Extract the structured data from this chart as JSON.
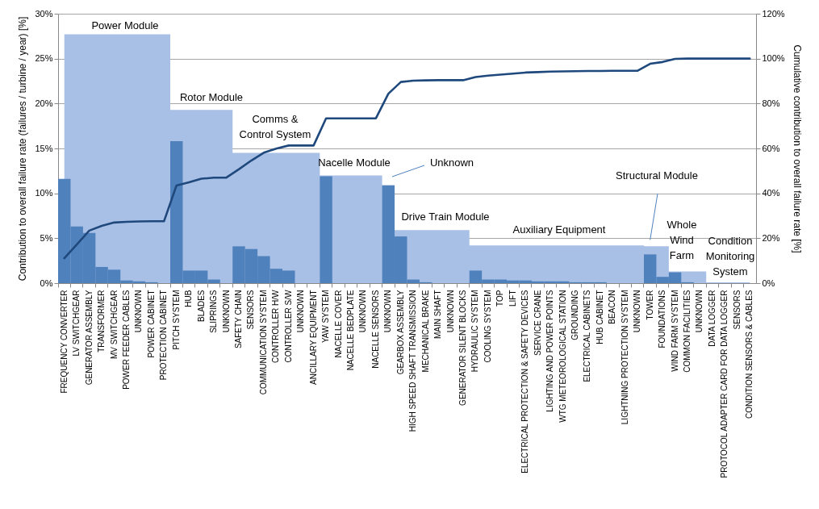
{
  "chart_data": {
    "type": "bar",
    "ylabel": "Contribution to overall failure rate (failures / turbine / year) [%]",
    "y2label": "Cumulative contribution to overall failure rate [%]",
    "categories": [
      "FREQUENCY CONVERTER",
      "LV SWITCHGEAR",
      "GENERATOR ASSEMBLY",
      "TRANSFORMER",
      "MV SWITCHGEAR",
      "POWER FEEDER CABLES",
      "UNKNOWN",
      "POWER CABINET",
      "PROTECTION CABINET",
      "PITCH SYSTEM",
      "HUB",
      "BLADES",
      "SLIPRINGS",
      "UNKNOWN",
      "SAFETY CHAIN",
      "SENSORS",
      "COMMUNICATION SYSTEM",
      "CONTROLLER H/W",
      "CONTROLLER S/W",
      "UNKNOWN",
      "ANCILLARY EQUIPMENT",
      "YAW SYSTEM",
      "NACELLE COVER",
      "NACELLE BEDPLATE",
      "UNKNOWN",
      "NACELLE SENSORS",
      "UNKNOWN",
      "GEARBOX ASSEMBLY",
      "HIGH SPEED SHAFT TRANSMISSION",
      "MECHANICAL BRAKE",
      "MAIN SHAFT",
      "UNKNOWN",
      "GENERATOR SILENT BLOCKS",
      "HYDRAULIC SYSTEM",
      "COOLING SYSTEM",
      "TOP",
      "LIFT",
      "ELECTRICAL PROTECTION & SAFETY DEVICES",
      "SERVICE CRANE",
      "LIGHTING AND POWER POINTS",
      "WTG METEOROLOGICAL STATION",
      "GROUNDING",
      "ELECTRICAL CABINETS",
      "HUB CABINET",
      "BEACON",
      "LIGHTNING PROTECTION SYSTEM",
      "UNKNOWN",
      "TOWER",
      "FOUNDATIONS",
      "WIND FARM SYSTEM",
      "COMMON FACILITIES",
      "UNKNOWN",
      "DATA LOGGER",
      "PROTOCOL ADAPTER CARD FOR DATA LOGGER",
      "SENSORS",
      "CONDITION SENSORS & CABLES"
    ],
    "series": [
      {
        "type": "area",
        "color": "#a9c0e6",
        "values": [
          27.7,
          27.7,
          27.7,
          27.7,
          27.7,
          27.7,
          27.7,
          27.7,
          27.7,
          19.3,
          19.3,
          19.3,
          19.3,
          19.3,
          14.5,
          14.5,
          14.5,
          14.5,
          14.5,
          14.5,
          14.5,
          12.0,
          12.0,
          12.0,
          12.0,
          12.0,
          10.9,
          5.9,
          5.9,
          5.9,
          5.9,
          5.9,
          5.9,
          4.2,
          4.2,
          4.2,
          4.2,
          4.2,
          4.2,
          4.2,
          4.2,
          4.2,
          4.2,
          4.2,
          4.2,
          4.2,
          4.2,
          4.1,
          4.1,
          1.3,
          1.3,
          1.3,
          0.1,
          0.1,
          0.1,
          0.1
        ]
      },
      {
        "color": "#4f81bd",
        "values": [
          11.6,
          6.3,
          5.6,
          1.8,
          1.5,
          0.3,
          0.2,
          0.1,
          0,
          15.8,
          1.4,
          1.4,
          0.4,
          0,
          4.1,
          3.8,
          3.0,
          1.6,
          1.4,
          0,
          0,
          11.9,
          0,
          0,
          0,
          0,
          10.9,
          5.2,
          0.4,
          0.1,
          0,
          0,
          0,
          1.4,
          0.4,
          0.4,
          0.3,
          0.3,
          0.2,
          0.2,
          0.2,
          0.1,
          0.1,
          0.1,
          0,
          0,
          0,
          3.2,
          0.7,
          1.2,
          0.1,
          0,
          0,
          0,
          0,
          0
        ]
      },
      {
        "type": "line",
        "axis": "y2",
        "color": "#1f497d",
        "values": [
          11.1,
          17.2,
          23.4,
          25.5,
          27.0,
          27.3,
          27.5,
          27.6,
          27.6,
          43.5,
          44.9,
          46.5,
          47.0,
          47.0,
          50.7,
          54.6,
          58.1,
          59.9,
          61.3,
          61.3,
          61.3,
          73.4,
          73.4,
          73.4,
          73.4,
          73.4,
          84.4,
          89.6,
          90.2,
          90.3,
          90.4,
          90.4,
          90.4,
          91.8,
          92.4,
          92.9,
          93.3,
          93.8,
          94.0,
          94.2,
          94.3,
          94.4,
          94.5,
          94.5,
          94.6,
          94.6,
          94.6,
          97.7,
          98.5,
          99.9,
          100,
          100,
          100,
          100,
          100,
          100
        ]
      }
    ],
    "ylim": [
      0,
      30
    ],
    "yticks": [
      {
        "value": 0,
        "label": "0%"
      },
      {
        "value": 5,
        "label": "5%"
      },
      {
        "value": 10,
        "label": "10%"
      },
      {
        "value": 15,
        "label": "15%"
      },
      {
        "value": 20,
        "label": "20%"
      },
      {
        "value": 25,
        "label": "25%"
      },
      {
        "value": 30,
        "label": "30%"
      }
    ],
    "y2lim": [
      0,
      120
    ],
    "y2ticks": [
      {
        "value": 0,
        "label": "0%"
      },
      {
        "value": 20,
        "label": "20%"
      },
      {
        "value": 40,
        "label": "40%"
      },
      {
        "value": 60,
        "label": "60%"
      },
      {
        "value": 80,
        "label": "80%"
      },
      {
        "value": 100,
        "label": "100%"
      },
      {
        "value": 120,
        "label": "120%"
      }
    ],
    "annotations": [
      "Power Module",
      "Rotor Module",
      "Comms &\nControl System",
      "Nacelle Module",
      "Unknown",
      "Drive Train Module",
      "Auxiliary Equipment",
      {
        "text": "Structural Module",
        "x": "TOWER",
        "y": 4.1
      },
      "Whole\nWind\nFarm",
      "Condition\nMonitoring\nSystem"
    ],
    "grid": "y"
  }
}
